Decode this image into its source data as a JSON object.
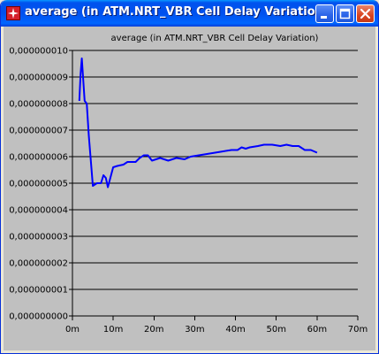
{
  "window": {
    "title": "average (in ATM.NRT_VBR Cell Delay Variation)",
    "icon": "app-icon",
    "buttons": [
      "minimize-button",
      "maximize-button",
      "close-button"
    ]
  },
  "chart_data": {
    "type": "line",
    "title": "average (in ATM.NRT_VBR Cell Delay Variation)",
    "xlabel": "",
    "ylabel": "",
    "xlim": [
      0,
      70
    ],
    "ylim": [
      0,
      1e-08
    ],
    "grid": "horizontal",
    "x_ticks": [
      "0m",
      "10m",
      "20m",
      "30m",
      "40m",
      "50m",
      "60m",
      "70m"
    ],
    "y_ticks": [
      "0,000000000",
      "0,000000001",
      "0,000000002",
      "0,000000003",
      "0,000000004",
      "0,000000005",
      "0,000000006",
      "0,000000007",
      "0,000000008",
      "0,000000009",
      "0,000000010"
    ],
    "series": [
      {
        "color": "#0000ff",
        "x": [
          1.7,
          2.0,
          2.3,
          2.6,
          3.0,
          3.5,
          4.0,
          5.0,
          6.0,
          7.0,
          7.6,
          8.2,
          8.7,
          9.3,
          10.0,
          11.0,
          12.5,
          13.5,
          14.5,
          15.5,
          16.5,
          17.5,
          18.5,
          19.5,
          20.5,
          21.5,
          22.5,
          23.5,
          24.5,
          25.5,
          27.5,
          29.0,
          31.0,
          33.0,
          35.0,
          37.0,
          39.0,
          40.5,
          41.5,
          42.5,
          43.5,
          45.5,
          47.0,
          49.0,
          51.0,
          52.5,
          54.0,
          55.5,
          57.0,
          58.5,
          60.0
        ],
        "y": [
          8.1e-09,
          9.1e-09,
          9.7e-09,
          9e-09,
          8.1e-09,
          8e-09,
          6.8e-09,
          4.9e-09,
          5e-09,
          5e-09,
          5.3e-09,
          5.2e-09,
          4.85e-09,
          5.2e-09,
          5.6e-09,
          5.65e-09,
          5.7e-09,
          5.8e-09,
          5.8e-09,
          5.8e-09,
          5.95e-09,
          6.05e-09,
          6.05e-09,
          5.85e-09,
          5.9e-09,
          5.95e-09,
          5.9e-09,
          5.85e-09,
          5.9e-09,
          5.95e-09,
          5.9e-09,
          6e-09,
          6.05e-09,
          6.1e-09,
          6.15e-09,
          6.2e-09,
          6.25e-09,
          6.25e-09,
          6.35e-09,
          6.3e-09,
          6.35e-09,
          6.4e-09,
          6.45e-09,
          6.45e-09,
          6.4e-09,
          6.45e-09,
          6.4e-09,
          6.4e-09,
          6.25e-09,
          6.25e-09,
          6.15e-09
        ]
      }
    ]
  }
}
